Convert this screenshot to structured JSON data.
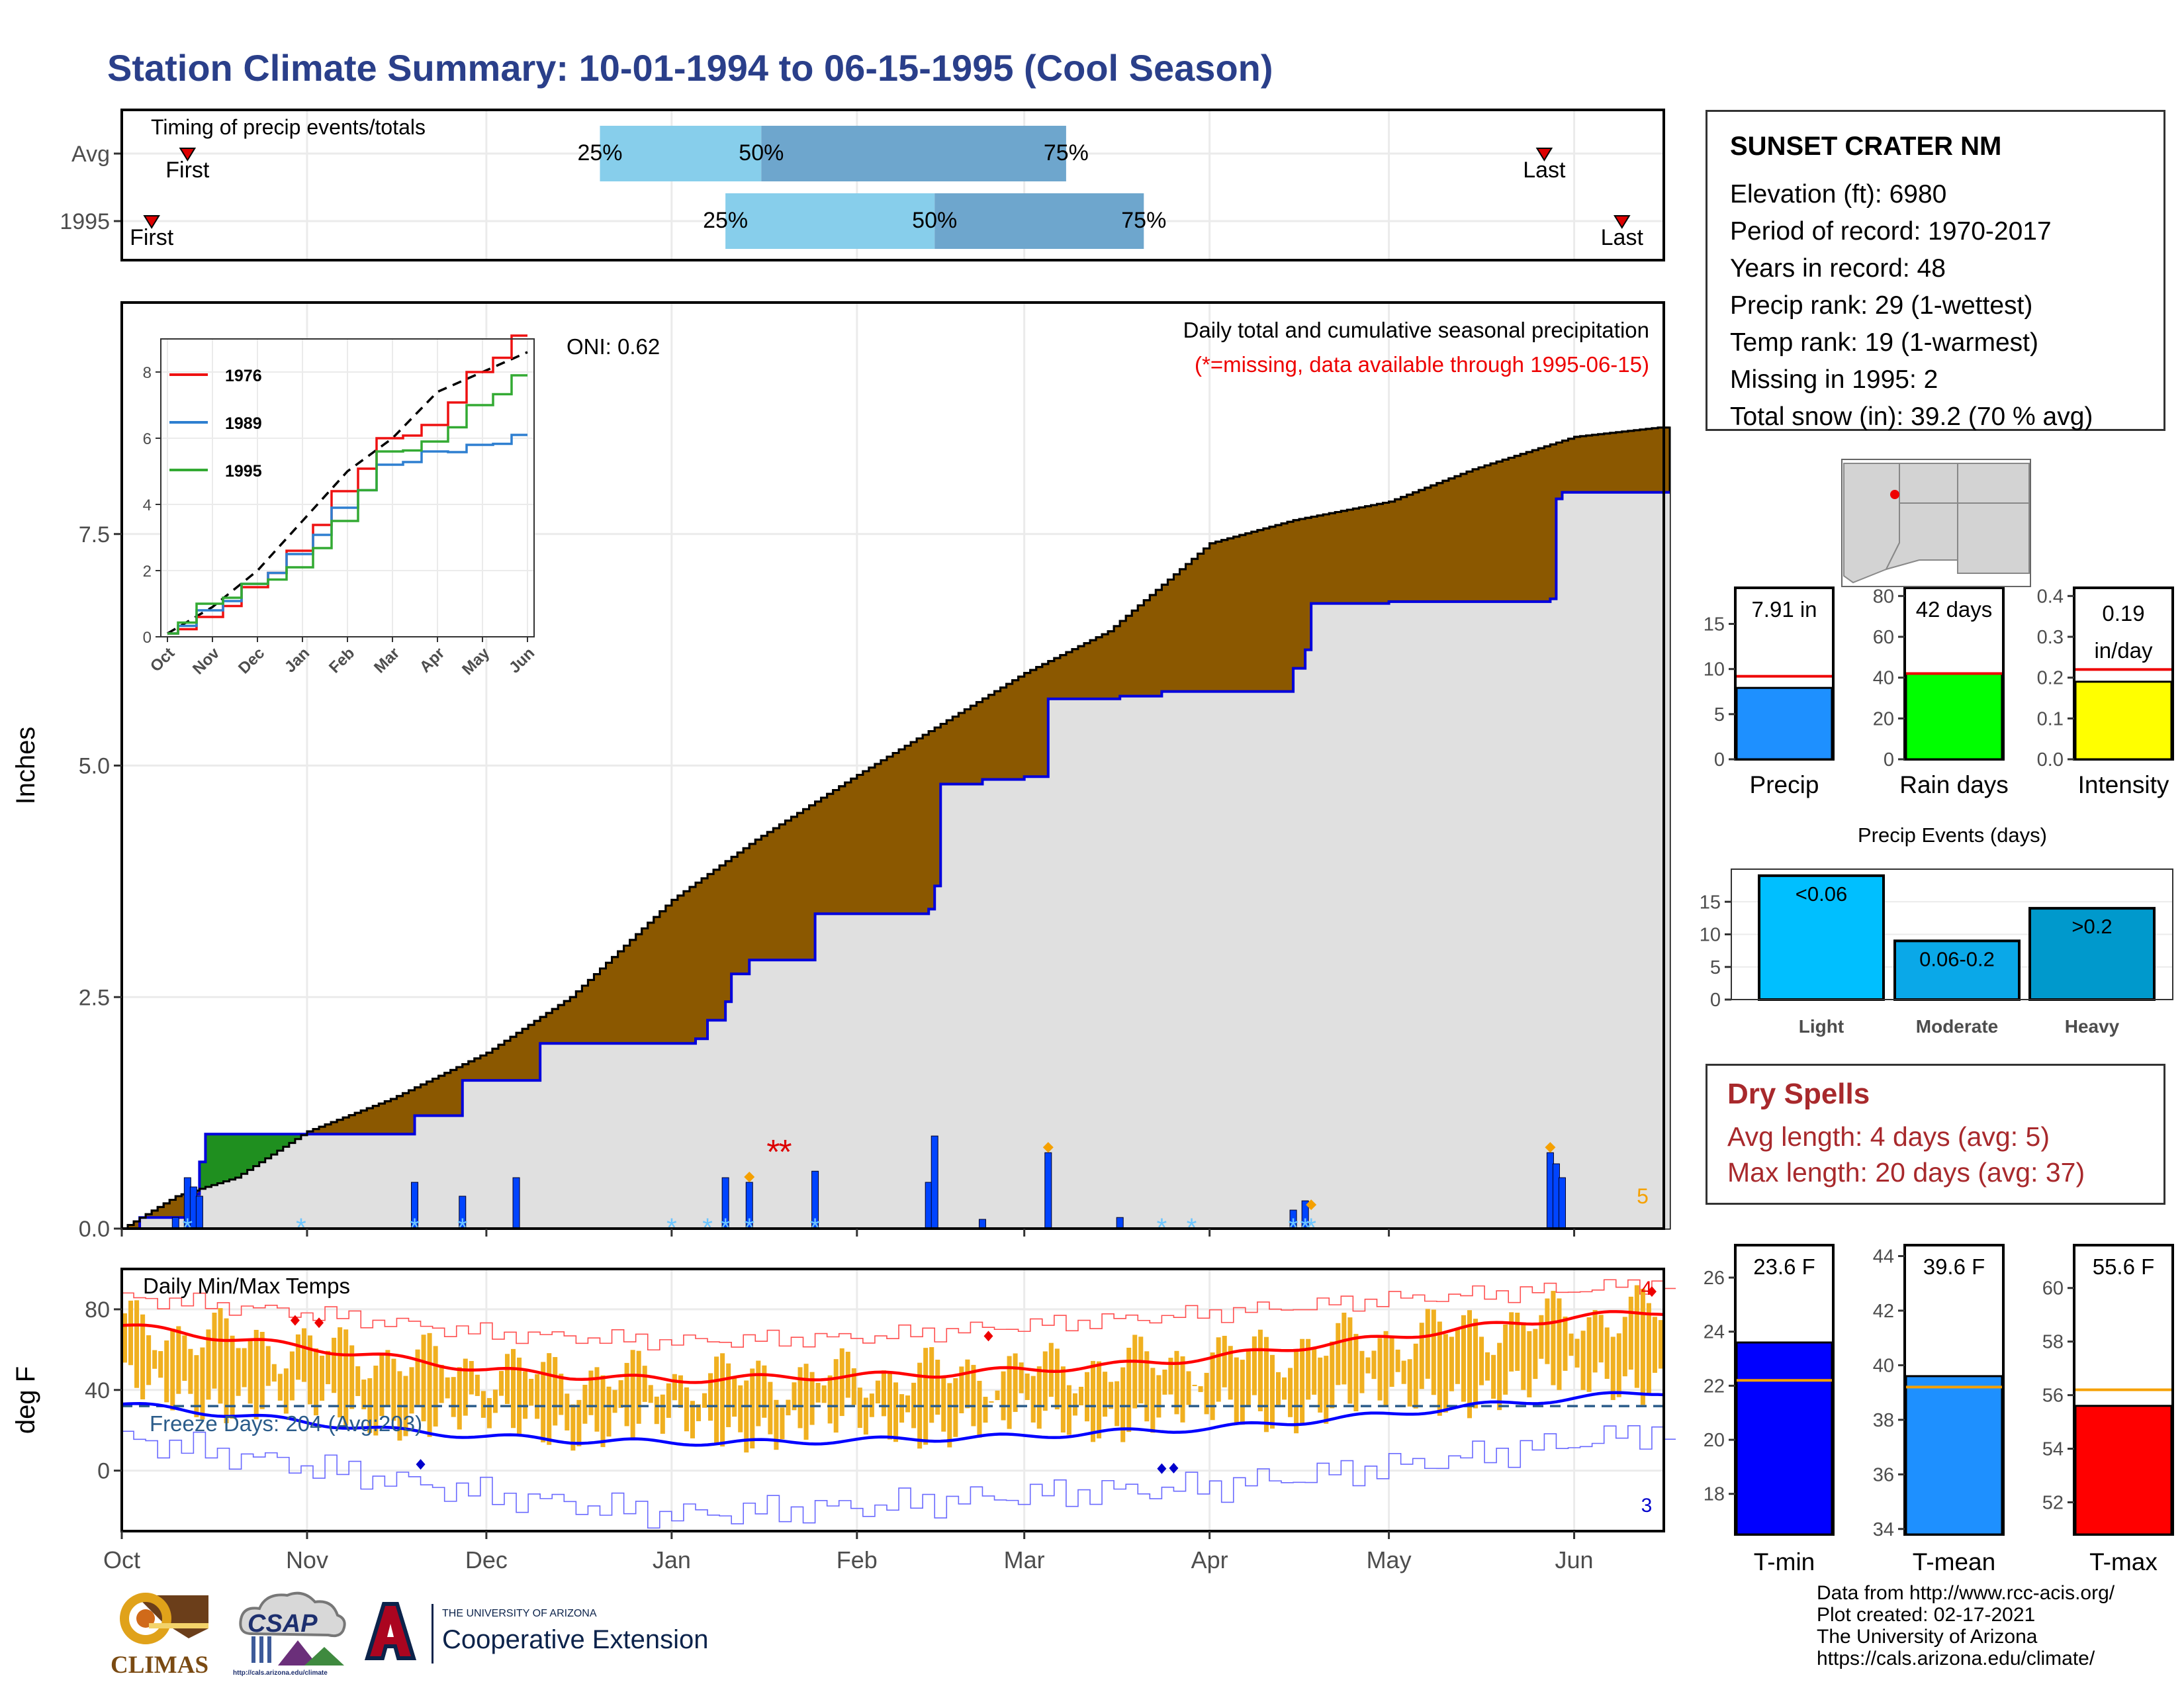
{
  "title": "Station Climate Summary: 10-01-1994 to 06-15-1995 (Cool Season)",
  "colors": {
    "title": "#2a3f8a",
    "brown": "#8b5800",
    "green_fill": "#1f8f1f",
    "gray_fill": "#e0e0e0",
    "cum_line": "#0000dd",
    "tmin": "#0000ff",
    "tmax": "#ff0000",
    "bar_orange": "#f0b020",
    "precip_blue": "#1e90ff",
    "rain_green": "#00ff00",
    "intensity_yellow": "#ffff00",
    "light_blue": "#00bfff",
    "moderate_blue": "#0aa8e8",
    "heavy_blue": "#0099cc",
    "tmean_blue": "#1e90ff",
    "dry_red": "#a8292c",
    "timing_light": "#87ceeb",
    "timing_dark": "#6ea6cd"
  },
  "timing": {
    "label": "Timing of precip events/totals",
    "rows": [
      {
        "label": "Avg",
        "first_date": "1994-10-12",
        "q25_date": "1994-12-20",
        "q50_date": "1995-01-16",
        "q75_date": "1995-03-08",
        "last_date": "1995-05-27",
        "first_label": "First",
        "last_label": "Last",
        "q25_label": "25%",
        "q50_label": "50%",
        "q75_label": "75%"
      },
      {
        "label": "1995",
        "first_date": "1994-10-06",
        "q25_date": "1995-01-10",
        "q50_date": "1995-02-14",
        "q75_date": "1995-03-21",
        "last_date": "1995-06-09",
        "first_label": "First",
        "last_label": "Last",
        "q25_label": "25%",
        "q50_label": "50%",
        "q75_label": "75%"
      }
    ]
  },
  "months": [
    "Oct",
    "Nov",
    "Dec",
    "Jan",
    "Feb",
    "Mar",
    "Apr",
    "May",
    "Jun"
  ],
  "chart_data": [
    {
      "type": "area",
      "title": "Daily total and cumulative seasonal precipitation",
      "subtitle": "(*=missing, data available through 1995-06-15)",
      "ylabel": "Inches",
      "ylim": [
        0,
        10.0
      ],
      "yticks": [
        "0.0",
        "2.5",
        "5.0",
        "7.5"
      ],
      "oni": "ONI: 0.62",
      "count_label": "5",
      "avg_cumulative": [
        {
          "date": "1994-10-01",
          "value": 0.0
        },
        {
          "date": "1994-10-10",
          "value": 0.35
        },
        {
          "date": "1994-10-20",
          "value": 0.55
        },
        {
          "date": "1994-11-01",
          "value": 1.05
        },
        {
          "date": "1994-11-15",
          "value": 1.4
        },
        {
          "date": "1994-12-01",
          "value": 1.9
        },
        {
          "date": "1994-12-15",
          "value": 2.5
        },
        {
          "date": "1995-01-01",
          "value": 3.55
        },
        {
          "date": "1995-01-15",
          "value": 4.2
        },
        {
          "date": "1995-02-01",
          "value": 4.9
        },
        {
          "date": "1995-02-15",
          "value": 5.45
        },
        {
          "date": "1995-03-01",
          "value": 6.0
        },
        {
          "date": "1995-03-15",
          "value": 6.45
        },
        {
          "date": "1995-04-01",
          "value": 7.4
        },
        {
          "date": "1995-04-15",
          "value": 7.65
        },
        {
          "date": "1995-05-01",
          "value": 7.85
        },
        {
          "date": "1995-05-15",
          "value": 8.2
        },
        {
          "date": "1995-06-01",
          "value": 8.55
        },
        {
          "date": "1995-06-15",
          "value": 8.65
        }
      ],
      "obs_cumulative": [
        {
          "date": "1994-10-01",
          "value": 0.0
        },
        {
          "date": "1994-10-04",
          "value": 0.12
        },
        {
          "date": "1994-10-12",
          "value": 0.37
        },
        {
          "date": "1994-10-14",
          "value": 0.72
        },
        {
          "date": "1994-10-15",
          "value": 1.02
        },
        {
          "date": "1994-11-19",
          "value": 1.22
        },
        {
          "date": "1994-11-27",
          "value": 1.6
        },
        {
          "date": "1994-12-10",
          "value": 2.0
        },
        {
          "date": "1995-01-05",
          "value": 2.05
        },
        {
          "date": "1995-01-07",
          "value": 2.25
        },
        {
          "date": "1995-01-10",
          "value": 2.45
        },
        {
          "date": "1995-01-11",
          "value": 2.75
        },
        {
          "date": "1995-01-14",
          "value": 2.9
        },
        {
          "date": "1995-01-25",
          "value": 3.4
        },
        {
          "date": "1995-02-13",
          "value": 3.45
        },
        {
          "date": "1995-02-14",
          "value": 3.7
        },
        {
          "date": "1995-02-15",
          "value": 4.8
        },
        {
          "date": "1995-02-22",
          "value": 4.85
        },
        {
          "date": "1995-03-01",
          "value": 4.88
        },
        {
          "date": "1995-03-05",
          "value": 5.72
        },
        {
          "date": "1995-03-17",
          "value": 5.75
        },
        {
          "date": "1995-03-24",
          "value": 5.8
        },
        {
          "date": "1995-04-15",
          "value": 6.05
        },
        {
          "date": "1995-04-17",
          "value": 6.25
        },
        {
          "date": "1995-04-18",
          "value": 6.75
        },
        {
          "date": "1995-05-01",
          "value": 6.77
        },
        {
          "date": "1995-05-28",
          "value": 6.8
        },
        {
          "date": "1995-05-29",
          "value": 7.88
        },
        {
          "date": "1995-05-30",
          "value": 7.95
        },
        {
          "date": "1995-06-15",
          "value": 7.95
        }
      ],
      "daily_precip": [
        {
          "date": "1994-10-10",
          "value": 0.12
        },
        {
          "date": "1994-10-12",
          "value": 0.55
        },
        {
          "date": "1994-10-13",
          "value": 0.45
        },
        {
          "date": "1994-10-14",
          "value": 0.35
        },
        {
          "date": "1994-11-19",
          "value": 0.5
        },
        {
          "date": "1994-11-27",
          "value": 0.35
        },
        {
          "date": "1994-12-06",
          "value": 0.55
        },
        {
          "date": "1995-01-10",
          "value": 0.55
        },
        {
          "date": "1995-01-14",
          "value": 0.5
        },
        {
          "date": "1995-01-25",
          "value": 0.62
        },
        {
          "date": "1995-02-13",
          "value": 0.5
        },
        {
          "date": "1995-02-14",
          "value": 1.0
        },
        {
          "date": "1995-02-22",
          "value": 0.1
        },
        {
          "date": "1995-03-05",
          "value": 0.82
        },
        {
          "date": "1995-03-17",
          "value": 0.12
        },
        {
          "date": "1995-04-15",
          "value": 0.2
        },
        {
          "date": "1995-04-17",
          "value": 0.3
        },
        {
          "date": "1995-05-28",
          "value": 0.82
        },
        {
          "date": "1995-05-29",
          "value": 0.7
        },
        {
          "date": "1995-05-30",
          "value": 0.55
        }
      ],
      "missing_markers": [
        "1995-01-18",
        "1995-01-20"
      ],
      "inset": {
        "type": "line",
        "yticks": [
          "0",
          "2",
          "4",
          "6",
          "8"
        ],
        "ylim": [
          0,
          9
        ],
        "months": [
          "Oct",
          "Nov",
          "Dec",
          "Jan",
          "Feb",
          "Mar",
          "Apr",
          "May",
          "Jun"
        ],
        "series": [
          {
            "name": "1976",
            "color": "#ee1111",
            "values": [
              0.1,
              0.6,
              1.5,
              2.6,
              4.4,
              6.0,
              6.4,
              8.0,
              9.1
            ]
          },
          {
            "name": "1989",
            "color": "#2e7fd0",
            "values": [
              0.1,
              0.8,
              1.6,
              2.5,
              3.9,
              5.2,
              5.6,
              5.8,
              6.1
            ]
          },
          {
            "name": "1995",
            "color": "#33aa33",
            "values": [
              0.1,
              1.0,
              1.6,
              2.1,
              3.5,
              5.6,
              5.9,
              7.0,
              7.9
            ]
          }
        ],
        "avg_values": [
          0.1,
          0.9,
          2.0,
          3.5,
          5.0,
          6.0,
          7.4,
          8.0,
          8.6
        ]
      }
    },
    {
      "type": "line",
      "title": "Daily Min/Max Temps",
      "ylabel": "deg F",
      "ylim": [
        -30,
        100
      ],
      "yticks": [
        "0",
        "40",
        "80"
      ],
      "freeze_label": "Freeze Days: 204 (Avg:203)",
      "freeze_level": 32,
      "count_hot": "4",
      "count_cold": "3",
      "tmax_smooth": [
        {
          "date": "1994-10-01",
          "value": 72
        },
        {
          "date": "1994-10-15",
          "value": 67
        },
        {
          "date": "1994-11-01",
          "value": 61
        },
        {
          "date": "1994-11-15",
          "value": 56
        },
        {
          "date": "1994-12-01",
          "value": 50
        },
        {
          "date": "1994-12-15",
          "value": 47
        },
        {
          "date": "1995-01-01",
          "value": 45
        },
        {
          "date": "1995-01-15",
          "value": 46
        },
        {
          "date": "1995-02-01",
          "value": 47
        },
        {
          "date": "1995-02-15",
          "value": 48
        },
        {
          "date": "1995-03-01",
          "value": 50
        },
        {
          "date": "1995-03-15",
          "value": 52
        },
        {
          "date": "1995-04-01",
          "value": 56
        },
        {
          "date": "1995-04-15",
          "value": 61
        },
        {
          "date": "1995-05-01",
          "value": 66
        },
        {
          "date": "1995-05-15",
          "value": 71
        },
        {
          "date": "1995-06-01",
          "value": 76
        },
        {
          "date": "1995-06-15",
          "value": 79
        }
      ],
      "tmin_smooth": [
        {
          "date": "1994-10-01",
          "value": 33
        },
        {
          "date": "1994-10-15",
          "value": 29
        },
        {
          "date": "1994-11-01",
          "value": 24
        },
        {
          "date": "1994-11-15",
          "value": 20
        },
        {
          "date": "1994-12-01",
          "value": 17
        },
        {
          "date": "1994-12-15",
          "value": 15
        },
        {
          "date": "1995-01-01",
          "value": 14
        },
        {
          "date": "1995-01-15",
          "value": 14
        },
        {
          "date": "1995-02-01",
          "value": 15
        },
        {
          "date": "1995-02-15",
          "value": 16
        },
        {
          "date": "1995-03-01",
          "value": 17
        },
        {
          "date": "1995-03-15",
          "value": 19
        },
        {
          "date": "1995-04-01",
          "value": 21
        },
        {
          "date": "1995-04-15",
          "value": 24
        },
        {
          "date": "1995-05-01",
          "value": 28
        },
        {
          "date": "1995-05-15",
          "value": 32
        },
        {
          "date": "1995-06-01",
          "value": 36
        },
        {
          "date": "1995-06-15",
          "value": 39
        }
      ],
      "record_max": [
        {
          "date": "1994-10-01",
          "value": 86
        },
        {
          "date": "1994-11-01",
          "value": 78
        },
        {
          "date": "1994-12-01",
          "value": 68
        },
        {
          "date": "1995-01-01",
          "value": 64
        },
        {
          "date": "1995-02-01",
          "value": 66
        },
        {
          "date": "1995-03-01",
          "value": 72
        },
        {
          "date": "1995-04-01",
          "value": 78
        },
        {
          "date": "1995-05-01",
          "value": 85
        },
        {
          "date": "1995-06-01",
          "value": 90
        },
        {
          "date": "1995-06-15",
          "value": 93
        }
      ],
      "record_min": [
        {
          "date": "1994-10-01",
          "value": 16
        },
        {
          "date": "1994-11-01",
          "value": 2
        },
        {
          "date": "1994-12-01",
          "value": -12
        },
        {
          "date": "1995-01-01",
          "value": -22
        },
        {
          "date": "1995-02-01",
          "value": -18
        },
        {
          "date": "1995-03-01",
          "value": -12
        },
        {
          "date": "1995-04-01",
          "value": -8
        },
        {
          "date": "1995-05-01",
          "value": 2
        },
        {
          "date": "1995-06-01",
          "value": 14
        },
        {
          "date": "1995-06-15",
          "value": 20
        }
      ],
      "record_hot_days": [
        "1994-10-30",
        "1994-11-03",
        "1995-02-23",
        "1995-06-14"
      ],
      "record_cold_days": [
        "1994-11-20",
        "1995-03-24",
        "1995-03-26"
      ]
    },
    {
      "type": "bar",
      "panel": "Precip",
      "value": 7.91,
      "value_label": "7.91 in",
      "avg": 9.2,
      "ylim": [
        0,
        19
      ],
      "yticks": [
        "0",
        "5",
        "10",
        "15"
      ]
    },
    {
      "type": "bar",
      "panel": "Rain days",
      "value": 42,
      "value_label": "42 days",
      "avg": 42,
      "ylim": [
        0,
        84
      ],
      "yticks": [
        "0",
        "20",
        "40",
        "60",
        "80"
      ]
    },
    {
      "type": "bar",
      "panel": "Intensity",
      "value": 0.19,
      "value_label": "0.19 in/day",
      "avg": 0.22,
      "ylim": [
        0,
        0.42
      ],
      "yticks": [
        "0.0",
        "0.1",
        "0.2",
        "0.3",
        "0.4"
      ]
    },
    {
      "type": "bar",
      "title": "Precip Events (days)",
      "categories": [
        "Light",
        "Moderate",
        "Heavy"
      ],
      "bar_labels": [
        "<0.06",
        "0.06-0.2",
        ">0.2"
      ],
      "values": [
        19,
        9,
        14
      ],
      "ylim": [
        0,
        20
      ],
      "yticks": [
        "0",
        "5",
        "10",
        "15"
      ]
    },
    {
      "type": "bar",
      "panel": "T-min",
      "value": 23.6,
      "value_label": "23.6 F",
      "avg": 22.2,
      "ylim": [
        16.5,
        27.2
      ],
      "yticks": [
        "18",
        "20",
        "22",
        "24",
        "26"
      ]
    },
    {
      "type": "bar",
      "panel": "T-mean",
      "value": 39.6,
      "value_label": "39.6 F",
      "avg": 39.2,
      "ylim": [
        33.8,
        44.4
      ],
      "yticks": [
        "34",
        "36",
        "38",
        "40",
        "42",
        "44"
      ]
    },
    {
      "type": "bar",
      "panel": "T-max",
      "value": 55.6,
      "value_label": "55.6 F",
      "avg": 56.2,
      "ylim": [
        50.8,
        61.6
      ],
      "yticks": [
        "52",
        "54",
        "56",
        "58",
        "60"
      ]
    }
  ],
  "station": {
    "name": "SUNSET CRATER NM",
    "rows": [
      "Elevation (ft): 6980",
      "Period of record: 1970-2017",
      "Years in record: 48",
      "Precip rank: 29 (1-wettest)",
      "Temp rank: 19 (1-warmest)",
      "Missing in 1995: 2",
      "Total snow (in): 39.2 (70 % avg)"
    ]
  },
  "dry_spells": {
    "title": "Dry Spells",
    "avg_length": "Avg length: 4 days (avg: 5)",
    "max_length": "Max length: 20 days (avg: 37)"
  },
  "credits": [
    "Data from http://www.rcc-acis.org/",
    "Plot created: 02-17-2021",
    "The University of Arizona",
    "https://cals.arizona.edu/climate/"
  ],
  "logos": {
    "climas": "CLIMAS",
    "csap": "CSAP",
    "csap_url": "http://cals.arizona.edu/climate",
    "ua_small": "THE UNIVERSITY OF ARIZONA",
    "coop": "Cooperative Extension"
  }
}
